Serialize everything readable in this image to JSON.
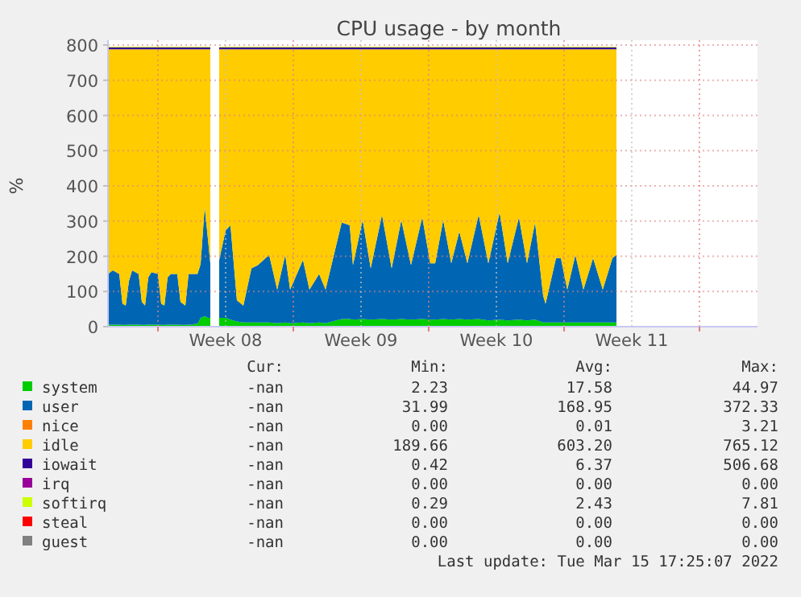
{
  "chart_data": {
    "type": "area",
    "stacked": true,
    "title": "CPU usage - by month",
    "ylabel": "%",
    "xlim": [
      "2022-02-17T10:00",
      "2022-03-23"
    ],
    "xticks": [
      {
        "value": "2022-02-20",
        "label": null
      },
      {
        "value": "2022-02-23T12:00",
        "label": "Week 08"
      },
      {
        "value": "2022-02-27",
        "label": null
      },
      {
        "value": "2022-03-02T12:00",
        "label": "Week 09"
      },
      {
        "value": "2022-03-06",
        "label": null
      },
      {
        "value": "2022-03-09T12:00",
        "label": "Week 10"
      },
      {
        "value": "2022-03-13",
        "label": null
      },
      {
        "value": "2022-03-16T12:00",
        "label": "Week 11"
      },
      {
        "value": "2022-03-20",
        "label": null
      }
    ],
    "ylim": [
      0,
      800
    ],
    "yticks": [
      0,
      100,
      200,
      300,
      400,
      500,
      600,
      700,
      800
    ],
    "grid": true,
    "legend": "bottom",
    "x": [
      "2022-02-17T10:00",
      "2022-02-17T16:00",
      "2022-02-18T00:00",
      "2022-02-18T04:00",
      "2022-02-18T08:00",
      "2022-02-18T12:00",
      "2022-02-18T16:00",
      "2022-02-19T00:00",
      "2022-02-19T04:00",
      "2022-02-19T08:00",
      "2022-02-19T12:00",
      "2022-02-19T16:00",
      "2022-02-20T00:00",
      "2022-02-20T04:00",
      "2022-02-20T08:00",
      "2022-02-20T12:00",
      "2022-02-20T16:00",
      "2022-02-21T00:00",
      "2022-02-21T04:00",
      "2022-02-21T10:00",
      "2022-02-21T14:00",
      "2022-02-21T18:00",
      "2022-02-21T22:00",
      "2022-02-22T01:00",
      "2022-02-22T04:00",
      "2022-02-22T05:00",
      "2022-02-22T10:00",
      "2022-02-22T14:00",
      "2022-02-22T17:00",
      "2022-02-22T22:00",
      "2022-02-23T04:00",
      "2022-02-23T12:00",
      "2022-02-23T18:00",
      "2022-02-24T02:00",
      "2022-02-24T10:00",
      "2022-02-24T20:00",
      "2022-02-25T04:00",
      "2022-02-25T18:00",
      "2022-02-26T04:00",
      "2022-02-26T14:00",
      "2022-02-26T20:00",
      "2022-02-27T12:00",
      "2022-02-27T20:00",
      "2022-02-28T08:00",
      "2022-02-28T16:00",
      "2022-03-01T12:00",
      "2022-03-01T22:00",
      "2022-03-02T02:00",
      "2022-03-02T14:00",
      "2022-03-03T00:00",
      "2022-03-03T14:00",
      "2022-03-04T02:00",
      "2022-03-04T14:00",
      "2022-03-05T02:00",
      "2022-03-05T16:00",
      "2022-03-06T02:00",
      "2022-03-06T08:00",
      "2022-03-06T18:00",
      "2022-03-07T04:00",
      "2022-03-07T14:00",
      "2022-03-08T00:00",
      "2022-03-08T14:00",
      "2022-03-09T02:00",
      "2022-03-09T16:00",
      "2022-03-10T02:00",
      "2022-03-10T16:00",
      "2022-03-11T02:00",
      "2022-03-11T12:00",
      "2022-03-11T22:00",
      "2022-03-12T01:00",
      "2022-03-12T14:00",
      "2022-03-12T20:00",
      "2022-03-13T04:00",
      "2022-03-13T14:00",
      "2022-03-14T00:00",
      "2022-03-14T12:00",
      "2022-03-15T00:00",
      "2022-03-15T12:00",
      "2022-03-15T17:00"
    ],
    "series": [
      {
        "name": "system",
        "color": "#00cc00",
        "values": [
          6,
          6,
          6,
          5,
          5,
          6,
          6,
          6,
          5,
          5,
          6,
          6,
          6,
          5,
          5,
          6,
          6,
          6,
          5,
          5,
          6,
          6,
          8,
          8,
          20,
          25,
          30,
          25,
          25,
          null,
          25,
          25,
          20,
          15,
          12,
          12,
          12,
          12,
          10,
          12,
          10,
          12,
          10,
          12,
          10,
          22,
          22,
          20,
          22,
          20,
          22,
          20,
          22,
          20,
          22,
          20,
          20,
          22,
          20,
          22,
          20,
          22,
          18,
          20,
          18,
          20,
          18,
          20,
          12,
          12,
          12,
          12,
          12,
          12,
          12,
          12,
          12,
          12,
          12
        ]
      },
      {
        "name": "user",
        "color": "#0066b3",
        "values": [
          144,
          154,
          144,
          60,
          55,
          124,
          154,
          144,
          65,
          55,
          134,
          149,
          144,
          60,
          55,
          134,
          144,
          144,
          65,
          55,
          144,
          144,
          142,
          142,
          150,
          155,
          310,
          225,
          155,
          null,
          165,
          248,
          268,
          60,
          48,
          154,
          163,
          192,
          95,
          192,
          95,
          178,
          95,
          138,
          95,
          274,
          266,
          155,
          281,
          146,
          296,
          146,
          281,
          155,
          289,
          160,
          160,
          281,
          160,
          248,
          160,
          296,
          162,
          305,
          162,
          291,
          162,
          276,
          76,
          53,
          183,
          183,
          93,
          192,
          93,
          183,
          93,
          183,
          192
        ]
      },
      {
        "name": "nice",
        "color": "#ff8000",
        "values": [
          null,
          null,
          null,
          null,
          null,
          null,
          null,
          null,
          null,
          null,
          null,
          null,
          null,
          null,
          null,
          null,
          null,
          null,
          null,
          null,
          null,
          null,
          null,
          null,
          null,
          null,
          null,
          null,
          null,
          null,
          null,
          null,
          null,
          null,
          null,
          null,
          null,
          null,
          null,
          null,
          null,
          null,
          null,
          null,
          null,
          null,
          null,
          null,
          null,
          null,
          null,
          null,
          null,
          null,
          null,
          null,
          null,
          null,
          null,
          null,
          null,
          null,
          null,
          null,
          null,
          null,
          null,
          null,
          null,
          null,
          null,
          null,
          null,
          null,
          null,
          null,
          null,
          null,
          null
        ]
      },
      {
        "name": "idle",
        "color": "#ffcc00",
        "values": [
          638,
          628,
          638,
          723,
          728,
          658,
          628,
          638,
          718,
          728,
          648,
          633,
          638,
          723,
          728,
          648,
          638,
          638,
          718,
          728,
          638,
          638,
          638,
          638,
          618,
          608,
          448,
          538,
          608,
          null,
          598,
          515,
          500,
          713,
          728,
          622,
          613,
          584,
          683,
          584,
          683,
          598,
          683,
          638,
          683,
          492,
          500,
          613,
          485,
          622,
          470,
          622,
          485,
          613,
          477,
          608,
          608,
          485,
          608,
          518,
          608,
          470,
          608,
          463,
          608,
          477,
          608,
          492,
          700,
          723,
          593,
          593,
          683,
          584,
          683,
          593,
          683,
          593,
          584
        ]
      },
      {
        "name": "iowait",
        "color": "#330099",
        "values": [
          5,
          5,
          5,
          5,
          5,
          5,
          5,
          5,
          5,
          5,
          5,
          5,
          5,
          5,
          5,
          5,
          5,
          5,
          5,
          5,
          5,
          5,
          5,
          5,
          5,
          5,
          5,
          5,
          5,
          null,
          5,
          5,
          5,
          5,
          5,
          5,
          5,
          5,
          5,
          5,
          5,
          5,
          5,
          5,
          5,
          5,
          5,
          5,
          5,
          5,
          5,
          5,
          5,
          5,
          5,
          5,
          5,
          5,
          5,
          5,
          5,
          5,
          5,
          5,
          5,
          5,
          5,
          5,
          5,
          5,
          5,
          5,
          5,
          5,
          5,
          5,
          5,
          5,
          5
        ]
      },
      {
        "name": "irq",
        "color": "#990099",
        "values": [
          null,
          null,
          null,
          null,
          null,
          null,
          null,
          null,
          null,
          null,
          null,
          null,
          null,
          null,
          null,
          null,
          null,
          null,
          null,
          null,
          null,
          null,
          null,
          null,
          null,
          null,
          null,
          null,
          null,
          null,
          null,
          null,
          null,
          null,
          null,
          null,
          null,
          null,
          null,
          null,
          null,
          null,
          null,
          null,
          null,
          null,
          null,
          null,
          null,
          null,
          null,
          null,
          null,
          null,
          null,
          null,
          null,
          null,
          null,
          null,
          null,
          null,
          null,
          null,
          null,
          null,
          null,
          null,
          null,
          null,
          null,
          null,
          null,
          null,
          null,
          null,
          null,
          null,
          null
        ]
      },
      {
        "name": "softirq",
        "color": "#ccff00",
        "values": [
          2,
          2,
          2,
          2,
          2,
          2,
          2,
          2,
          2,
          2,
          2,
          2,
          2,
          2,
          2,
          2,
          2,
          2,
          2,
          2,
          2,
          2,
          2,
          2,
          2,
          2,
          2,
          2,
          2,
          null,
          2,
          2,
          2,
          2,
          2,
          2,
          2,
          2,
          2,
          2,
          2,
          2,
          2,
          2,
          2,
          2,
          2,
          2,
          2,
          2,
          2,
          2,
          2,
          2,
          2,
          2,
          2,
          2,
          2,
          2,
          2,
          2,
          2,
          2,
          2,
          2,
          2,
          2,
          2,
          2,
          2,
          2,
          2,
          2,
          2,
          2,
          2,
          2,
          2
        ]
      },
      {
        "name": "steal",
        "color": "#ff0000",
        "values": [
          null,
          null,
          null,
          null,
          null,
          null,
          null,
          null,
          null,
          null,
          null,
          null,
          null,
          null,
          null,
          null,
          null,
          null,
          null,
          null,
          null,
          null,
          null,
          null,
          null,
          null,
          null,
          null,
          null,
          null,
          null,
          null,
          null,
          null,
          null,
          null,
          null,
          null,
          null,
          null,
          null,
          null,
          null,
          null,
          null,
          null,
          null,
          null,
          null,
          null,
          null,
          null,
          null,
          null,
          null,
          null,
          null,
          null,
          null,
          null,
          null,
          null,
          null,
          null,
          null,
          null,
          null,
          null,
          null,
          null,
          null,
          null,
          null,
          null,
          null,
          null,
          null,
          null,
          null
        ]
      },
      {
        "name": "guest",
        "color": "#808080",
        "values": [
          null,
          null,
          null,
          null,
          null,
          null,
          null,
          null,
          null,
          null,
          null,
          null,
          null,
          null,
          null,
          null,
          null,
          null,
          null,
          null,
          null,
          null,
          null,
          null,
          null,
          null,
          null,
          null,
          null,
          null,
          null,
          null,
          null,
          null,
          null,
          null,
          null,
          null,
          null,
          null,
          null,
          null,
          null,
          null,
          null,
          null,
          null,
          null,
          null,
          null,
          null,
          null,
          null,
          null,
          null,
          null,
          null,
          null,
          null,
          null,
          null,
          null,
          null,
          null,
          null,
          null,
          null,
          null,
          null,
          null,
          null,
          null,
          null,
          null,
          null,
          null,
          null,
          null,
          null
        ]
      }
    ],
    "annotations": [
      "Cur:",
      "Min:",
      "Avg:",
      "Max:",
      "-nan",
      "2.23",
      "17.58",
      "44.97",
      "-nan",
      "31.99",
      "168.95",
      "372.33",
      "-nan",
      "0.00",
      "0.01",
      "3.21",
      "-nan",
      "189.66",
      "603.20",
      "765.12",
      "-nan",
      "0.42",
      "6.37",
      "506.68",
      "-nan",
      "0.00",
      "0.00",
      "0.00",
      "-nan",
      "0.29",
      "2.43",
      "7.81",
      "-nan",
      "0.00",
      "0.00",
      "0.00",
      "-nan",
      "0.00",
      "0.00",
      "0.00",
      "Last update: Tue Mar 15 17:25:07 2022"
    ]
  }
}
